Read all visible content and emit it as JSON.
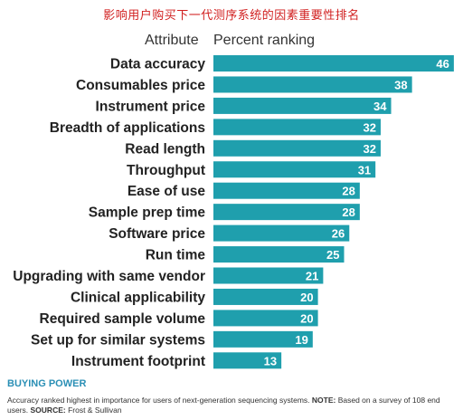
{
  "header": {
    "top_title": "影响用户购买下一代测序系统的因素重要性排名",
    "attribute_col": "Attribute",
    "ranking_col": "Percent ranking"
  },
  "chart_data": {
    "type": "bar",
    "orientation": "horizontal",
    "categories": [
      "Data accuracy",
      "Consumables price",
      "Instrument price",
      "Breadth of applications",
      "Read length",
      "Throughput",
      "Ease of use",
      "Sample prep time",
      "Software price",
      "Run time",
      "Upgrading with same vendor",
      "Clinical applicability",
      "Required sample volume",
      "Set up for similar systems",
      "Instrument footprint"
    ],
    "values": [
      46,
      38,
      34,
      32,
      32,
      31,
      28,
      28,
      26,
      25,
      21,
      20,
      20,
      19,
      13
    ],
    "data_labels": true,
    "bar_color": "#1f9fad",
    "label_color": "#ffffff"
  },
  "footer": {
    "title": "BUYING POWER",
    "note_text": "Accuracy ranked highest in importance for users of next-generation sequencing systems. ",
    "note_bold": "NOTE:",
    "note_rest": " Based on a survey of 108 end users. ",
    "source_bold": "SOURCE:",
    "source_rest": " Frost & Sullivan"
  }
}
